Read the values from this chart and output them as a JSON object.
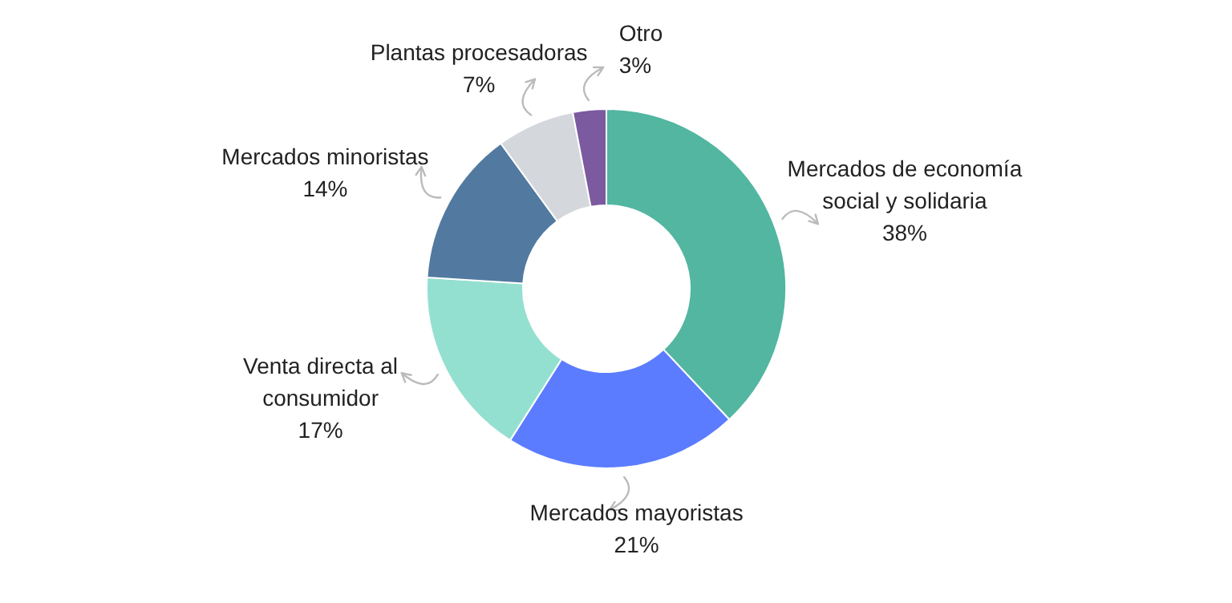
{
  "chart_data": {
    "type": "donut",
    "categories": [
      "Mercados de economía social y solidaria",
      "Mercados mayoristas",
      "Venta directa al consumidor",
      "Mercados minoristas",
      "Plantas procesadoras",
      "Otro"
    ],
    "values": [
      38,
      21,
      17,
      14,
      7,
      3
    ],
    "colors": [
      "#52b6a0",
      "#5b7cff",
      "#94e0d0",
      "#527aa0",
      "#d4d7dc",
      "#7b5aa0"
    ],
    "value_labels": [
      "38%",
      "21%",
      "17%",
      "14%",
      "7%",
      "3%"
    ]
  }
}
